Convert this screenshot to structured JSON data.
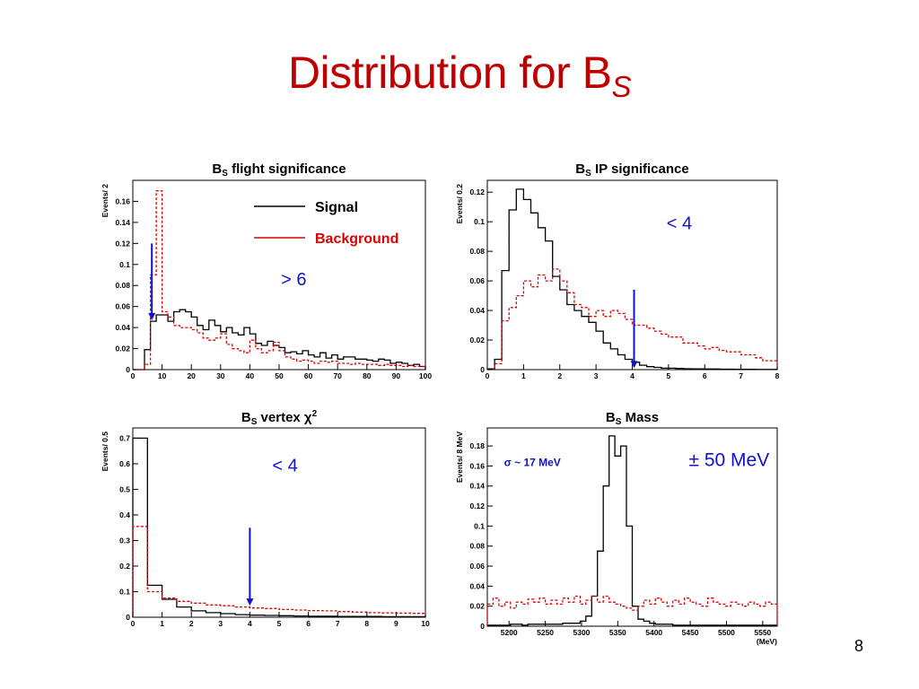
{
  "slide": {
    "title_main": "Distribution for B",
    "title_sub": "S",
    "page_number": "8"
  },
  "colors": {
    "title": "#c00000",
    "signal": "#000000",
    "background": "#e00000",
    "annotation": "#1111cc"
  },
  "chart_data": [
    {
      "type": "histogram",
      "title": "B",
      "title_sub": "S",
      "title_rest": " flight significance",
      "ylabel": "Events/ 2",
      "xlabel": "",
      "xlim": [
        0,
        100
      ],
      "ylim": [
        0,
        0.18
      ],
      "xticks": [
        0,
        10,
        20,
        30,
        40,
        50,
        60,
        70,
        80,
        90,
        100
      ],
      "yticks": [
        0,
        0.02,
        0.04,
        0.06,
        0.08,
        0.1,
        0.12,
        0.14,
        0.16
      ],
      "ytick_labels": [
        "0",
        "0.02",
        "0.04",
        "0.06",
        "0.08",
        "0.1",
        "0.12",
        "0.14",
        "0.16"
      ],
      "bin_start": 0,
      "bin_width": 2,
      "series": [
        {
          "name": "Signal",
          "style": "solid",
          "color": "#000000",
          "values": [
            0,
            0,
            0.019,
            0.046,
            0.052,
            0.052,
            0.046,
            0.055,
            0.057,
            0.055,
            0.05,
            0.042,
            0.038,
            0.047,
            0.042,
            0.036,
            0.04,
            0.035,
            0.033,
            0.04,
            0.034,
            0.025,
            0.023,
            0.027,
            0.023,
            0.021,
            0.016,
            0.017,
            0.015,
            0.018,
            0.014,
            0.012,
            0.016,
            0.011,
            0.014,
            0.01,
            0.012,
            0.012,
            0.01,
            0.01,
            0.009,
            0.008,
            0.01,
            0.009,
            0.006,
            0.007,
            0.006,
            0.004,
            0.005,
            0.003
          ]
        },
        {
          "name": "Background",
          "style": "dashed",
          "color": "#e00000",
          "values": [
            0,
            0,
            0.005,
            0.09,
            0.17,
            0.055,
            0.05,
            0.042,
            0.04,
            0.04,
            0.038,
            0.035,
            0.03,
            0.028,
            0.03,
            0.034,
            0.024,
            0.02,
            0.018,
            0.016,
            0.028,
            0.02,
            0.016,
            0.018,
            0.026,
            0.018,
            0.012,
            0.01,
            0.008,
            0.009,
            0.008,
            0.006,
            0.008,
            0.007,
            0.008,
            0.006,
            0.006,
            0.005,
            0.006,
            0.005,
            0.005,
            0.005,
            0.004,
            0.005,
            0.004,
            0.004,
            0.003,
            0.004,
            0.003,
            0.003
          ]
        }
      ],
      "cut": {
        "x": 6.5,
        "from_y": 0.12,
        "to_y": 0.047,
        "label": "> 6",
        "label_x": 55,
        "label_y": 0.08
      },
      "legend": {
        "placement": "top-right",
        "entries": [
          {
            "name": "Signal",
            "color": "#000000"
          },
          {
            "name": "Background",
            "color": "#e00000"
          }
        ]
      }
    },
    {
      "type": "histogram",
      "title": "B",
      "title_sub": "S",
      "title_rest": " IP significance",
      "ylabel": "Events/ 0.2",
      "xlabel": "",
      "xlim": [
        0,
        8
      ],
      "ylim": [
        0,
        0.128
      ],
      "xticks": [
        0,
        1,
        2,
        3,
        4,
        5,
        6,
        7,
        8
      ],
      "yticks": [
        0,
        0.02,
        0.04,
        0.06,
        0.08,
        0.1,
        0.12
      ],
      "ytick_labels": [
        "0",
        "0.02",
        "0.04",
        "0.06",
        "0.08",
        "0.1",
        "0.12"
      ],
      "bin_start": 0,
      "bin_width": 0.2,
      "series": [
        {
          "name": "Signal",
          "style": "solid",
          "color": "#000000",
          "values": [
            0.0005,
            0.007,
            0.067,
            0.108,
            0.122,
            0.115,
            0.106,
            0.096,
            0.087,
            0.063,
            0.054,
            0.044,
            0.04,
            0.036,
            0.032,
            0.026,
            0.018,
            0.014,
            0.01,
            0.007,
            0.005,
            0.003,
            0.002,
            0.0015,
            0.001,
            0.001,
            0.0008,
            0.0006,
            0.0005,
            0.0005,
            0.0004,
            0.0004,
            0.0003,
            0.0003,
            0.0002,
            0.0002,
            0.0002,
            0.0001,
            0.0001,
            0.0001
          ]
        },
        {
          "name": "Background",
          "style": "dashed",
          "color": "#e00000",
          "values": [
            0,
            0.004,
            0.033,
            0.042,
            0.05,
            0.06,
            0.056,
            0.064,
            0.06,
            0.068,
            0.06,
            0.052,
            0.044,
            0.042,
            0.036,
            0.04,
            0.036,
            0.04,
            0.038,
            0.034,
            0.03,
            0.03,
            0.028,
            0.026,
            0.024,
            0.022,
            0.022,
            0.018,
            0.018,
            0.016,
            0.014,
            0.015,
            0.013,
            0.012,
            0.012,
            0.01,
            0.01,
            0.008,
            0.006,
            0.006
          ]
        }
      ],
      "cut": {
        "x": 4.05,
        "from_y": 0.054,
        "to_y": 0.001,
        "label": "< 4",
        "label_x": 5.3,
        "label_y": 0.095
      }
    },
    {
      "type": "histogram",
      "title": "B",
      "title_sub": "S",
      "title_rest": " vertex χ",
      "title_sup": "2",
      "ylabel": "Events/ 0.5",
      "xlabel": "",
      "xlim": [
        0,
        10
      ],
      "ylim": [
        0,
        0.74
      ],
      "xticks": [
        0,
        1,
        2,
        3,
        4,
        5,
        6,
        7,
        8,
        9,
        10
      ],
      "yticks": [
        0,
        0.1,
        0.2,
        0.3,
        0.4,
        0.5,
        0.6,
        0.7
      ],
      "ytick_labels": [
        "0",
        "0.1",
        "0.2",
        "0.3",
        "0.4",
        "0.5",
        "0.6",
        "0.7"
      ],
      "bin_start": 0,
      "bin_width": 0.5,
      "series": [
        {
          "name": "Signal",
          "style": "solid",
          "color": "#000000",
          "values": [
            0.7,
            0.125,
            0.07,
            0.04,
            0.025,
            0.018,
            0.014,
            0.01,
            0.008,
            0.007,
            0.006,
            0.005,
            0.004,
            0.004,
            0.003,
            0.003,
            0.003,
            0.002,
            0.002,
            0.002
          ]
        },
        {
          "name": "Background",
          "style": "dashed",
          "color": "#e00000",
          "values": [
            0.355,
            0.1,
            0.075,
            0.062,
            0.055,
            0.048,
            0.045,
            0.04,
            0.036,
            0.034,
            0.03,
            0.028,
            0.026,
            0.025,
            0.022,
            0.02,
            0.018,
            0.017,
            0.016,
            0.015
          ]
        }
      ],
      "cut": {
        "x": 4.0,
        "from_y": 0.35,
        "to_y": 0.045,
        "label": "< 4",
        "label_x": 5.2,
        "label_y": 0.57
      }
    },
    {
      "type": "histogram",
      "title": "B",
      "title_sub": "S",
      "title_rest": " Mass",
      "ylabel": "Events/ 8 MeV",
      "xlabel": "(MeV)",
      "xlim": [
        5170,
        5570
      ],
      "ylim": [
        0,
        0.198
      ],
      "xticks": [
        5200,
        5250,
        5300,
        5350,
        5400,
        5450,
        5500,
        5550
      ],
      "yticks": [
        0,
        0.02,
        0.04,
        0.06,
        0.08,
        0.1,
        0.12,
        0.14,
        0.16,
        0.18
      ],
      "ytick_labels": [
        "0",
        "0.02",
        "0.04",
        "0.06",
        "0.08",
        "0.1",
        "0.12",
        "0.14",
        "0.16",
        "0.18"
      ],
      "bin_start": 5170,
      "bin_width": 8,
      "series": [
        {
          "name": "Signal",
          "style": "solid",
          "color": "#000000",
          "values": [
            0.001,
            0.001,
            0.001,
            0.001,
            0.002,
            0.002,
            0.001,
            0.002,
            0.002,
            0.002,
            0.002,
            0.002,
            0.002,
            0.003,
            0.003,
            0.003,
            0.005,
            0.01,
            0.03,
            0.075,
            0.14,
            0.19,
            0.17,
            0.18,
            0.1,
            0.02,
            0.007,
            0.005,
            0.003,
            0.002,
            0.002,
            0.002,
            0.001,
            0.001,
            0.001,
            0.001,
            0.001,
            0.001,
            0.001,
            0.001,
            0.001,
            0.001,
            0.001,
            0.001,
            0.001,
            0.001,
            0.001,
            0.001,
            0.001,
            0.001
          ]
        },
        {
          "name": "Background",
          "style": "dashed",
          "color": "#e00000",
          "values": [
            0.022,
            0.028,
            0.02,
            0.024,
            0.018,
            0.024,
            0.022,
            0.027,
            0.024,
            0.028,
            0.022,
            0.026,
            0.022,
            0.028,
            0.024,
            0.03,
            0.022,
            0.026,
            0.03,
            0.024,
            0.03,
            0.024,
            0.022,
            0.02,
            0.018,
            0.016,
            0.02,
            0.026,
            0.022,
            0.028,
            0.024,
            0.02,
            0.026,
            0.022,
            0.028,
            0.024,
            0.022,
            0.02,
            0.028,
            0.024,
            0.022,
            0.02,
            0.024,
            0.022,
            0.02,
            0.024,
            0.022,
            0.02,
            0.024,
            0.022
          ]
        }
      ],
      "annotations": [
        {
          "text": "σ ~ 17 MeV",
          "x": 5193,
          "y": 0.16,
          "size": 12,
          "bold": true
        },
        {
          "text": "± 50 MeV",
          "x": 5448,
          "y": 0.16,
          "size": 21,
          "bold": false
        }
      ]
    }
  ]
}
